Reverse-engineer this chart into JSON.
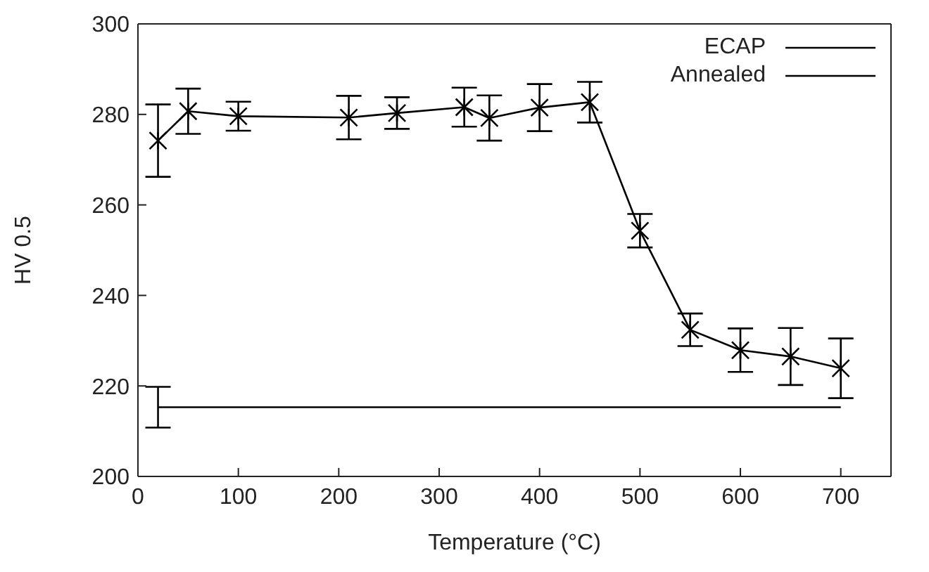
{
  "chart_data": {
    "type": "line",
    "xlabel": "Temperature (°C)",
    "ylabel": "HV 0.5",
    "xlim": [
      0,
      750
    ],
    "xticks": [
      0,
      100,
      200,
      300,
      400,
      500,
      600,
      700
    ],
    "ylim": [
      200,
      300
    ],
    "yticks": [
      200,
      220,
      240,
      260,
      280,
      300
    ],
    "legend": "top right",
    "series": [
      {
        "name": "ECAP",
        "color": "#000000",
        "marker": "cross",
        "x": [
          20,
          50,
          100,
          210,
          258,
          325,
          350,
          400,
          450,
          500,
          550,
          600,
          650,
          700
        ],
        "values": [
          274.2,
          280.7,
          279.6,
          279.3,
          280.3,
          281.6,
          279.2,
          281.5,
          282.7,
          254.3,
          232.4,
          227.9,
          226.5,
          223.9
        ],
        "errors": [
          8,
          5,
          3.2,
          4.8,
          3.5,
          4.3,
          5,
          5.2,
          4.5,
          3.7,
          3.6,
          4.8,
          6.3,
          6.6
        ]
      },
      {
        "name": "Annealed",
        "color": "#000000",
        "marker": "none",
        "x": [
          20,
          700
        ],
        "values": [
          215.3,
          215.3
        ],
        "errors": [
          4.5,
          null
        ]
      }
    ]
  }
}
